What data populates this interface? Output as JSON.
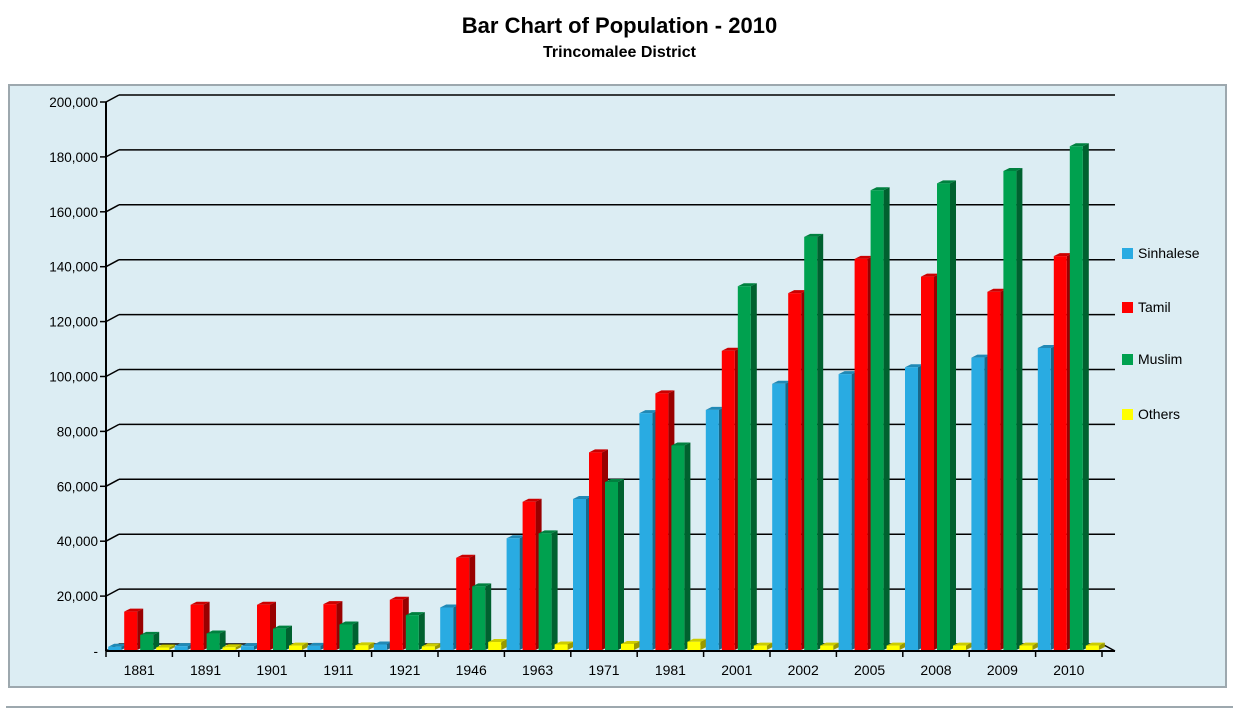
{
  "title": "Bar Chart of Population - 2010",
  "subtitle": "Trincomalee District",
  "colors": {
    "page_background": "#FFFFFF",
    "chart_background": "#DCEDF3",
    "chart_border": "#9DA8AE",
    "gridline": "#000000",
    "axis": "#000000",
    "text": "#000000",
    "sinhalese": "#29ABE2",
    "tamil": "#FF0000",
    "muslim": "#00A14F",
    "others": "#FFFF00"
  },
  "chart_data": {
    "type": "bar",
    "style": "3d-clustered-column",
    "title": "Bar Chart of Population - 2010",
    "subtitle": "Trincomalee District",
    "categories": [
      "1881",
      "1891",
      "1901",
      "1911",
      "1921",
      "1946",
      "1963",
      "1971",
      "1981",
      "2001",
      "2002",
      "2005",
      "2008",
      "2009",
      "2010"
    ],
    "series": [
      {
        "name": "Sinhalese",
        "color": "#29ABE2",
        "values": [
          1200,
          1400,
          1400,
          1500,
          2000,
          15500,
          40700,
          55000,
          86300,
          87500,
          97000,
          100500,
          103000,
          106500,
          110000
        ]
      },
      {
        "name": "Tamil",
        "color": "#FF0000",
        "values": [
          14000,
          16500,
          16500,
          16700,
          18300,
          33600,
          54000,
          72000,
          93500,
          109000,
          130000,
          142500,
          136000,
          130500,
          143500
        ]
      },
      {
        "name": "Muslim",
        "color": "#00A14F",
        "values": [
          5500,
          6000,
          7800,
          9300,
          12700,
          23200,
          42500,
          61200,
          74500,
          132500,
          150500,
          167500,
          170000,
          174500,
          183500
        ]
      },
      {
        "name": "Others",
        "color": "#FFFF00",
        "values": [
          900,
          1000,
          1600,
          1700,
          1300,
          2900,
          2000,
          2200,
          3000,
          1600,
          1600,
          1600,
          1600,
          1600,
          1600
        ]
      }
    ],
    "xlabel": "",
    "ylabel": "",
    "ylim": [
      0,
      200000
    ],
    "ytick_interval": 20000,
    "ytick_labels": [
      "-",
      "20,000",
      "40,000",
      "60,000",
      "80,000",
      "100,000",
      "120,000",
      "140,000",
      "160,000",
      "180,000",
      "200,000"
    ],
    "legend_position": "right",
    "legend_labels": [
      "Sinhalese",
      "Tamil",
      "Muslim",
      "Others"
    ],
    "grid": true
  }
}
